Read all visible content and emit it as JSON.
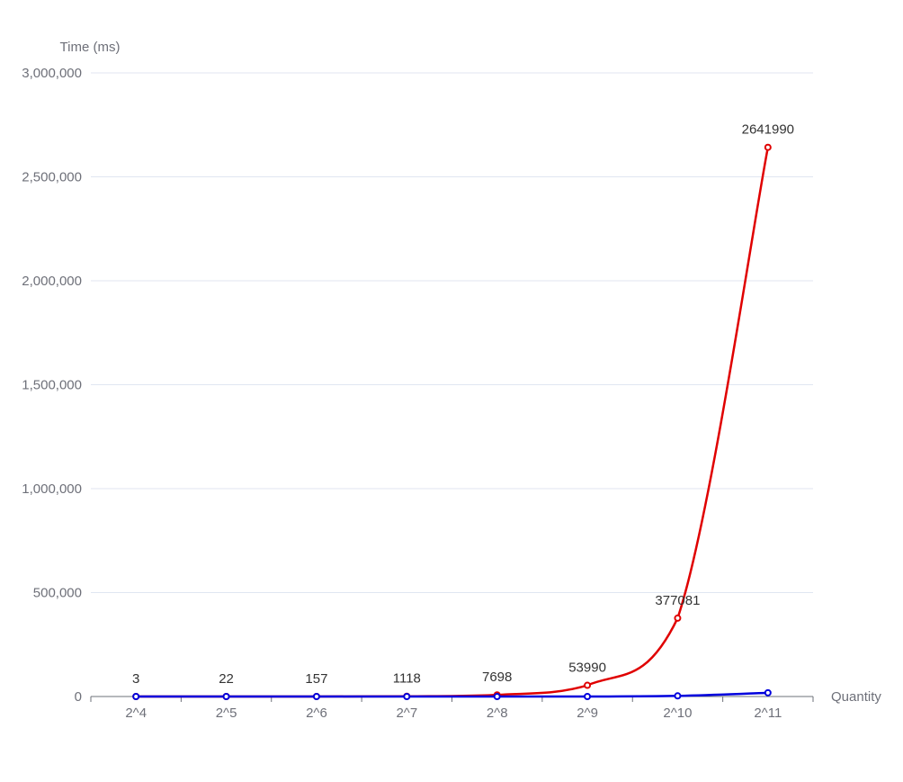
{
  "chart_data": {
    "type": "line",
    "categories": [
      "2^4",
      "2^5",
      "2^6",
      "2^7",
      "2^8",
      "2^9",
      "2^10",
      "2^11"
    ],
    "xlabel": "Quantity",
    "ylabel": "Time (ms)",
    "ylim": [
      0,
      3000000
    ],
    "yticks": [
      0,
      500000,
      1000000,
      1500000,
      2000000,
      2500000,
      3000000
    ],
    "ytick_labels": [
      "0",
      "500,000",
      "1,000,000",
      "1,500,000",
      "2,000,000",
      "2,500,000",
      "3,000,000"
    ],
    "grid": true,
    "smooth": true,
    "series": [
      {
        "color": "#e00000",
        "values": [
          3,
          22,
          157,
          1118,
          7698,
          53990,
          377081,
          2641990
        ],
        "data_labels": [
          "3",
          "22",
          "157",
          "1118",
          "7698",
          "53990",
          "377081",
          "2641990"
        ]
      },
      {
        "color": "#0000dd",
        "values": [
          0,
          0,
          0,
          0,
          0,
          0,
          3000,
          18000
        ]
      }
    ]
  }
}
